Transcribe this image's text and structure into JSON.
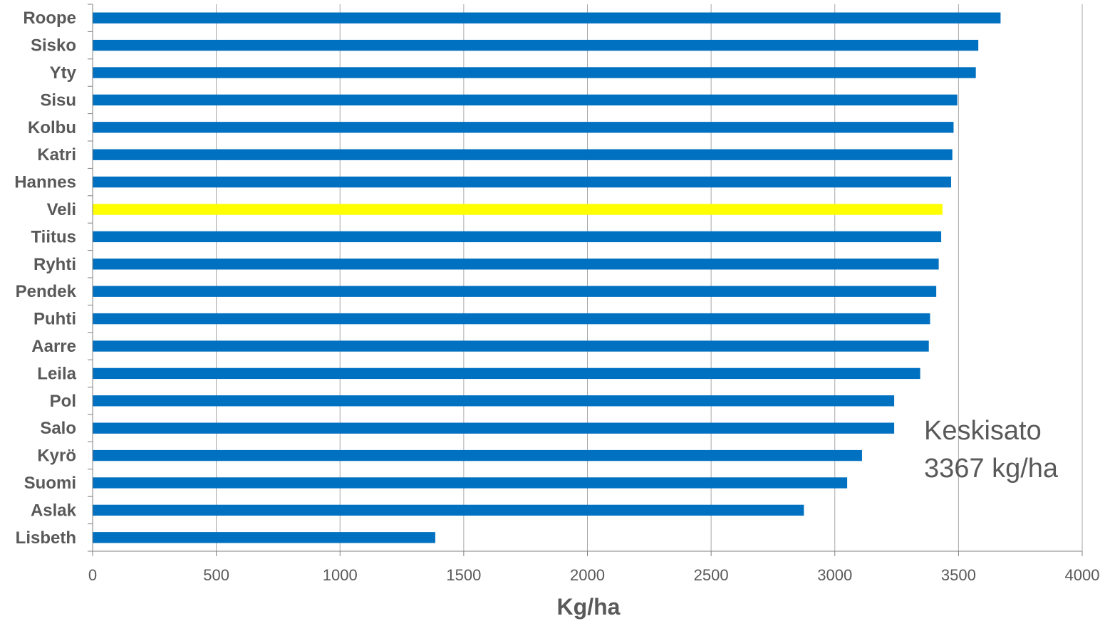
{
  "chart_data": {
    "type": "bar",
    "orientation": "horizontal",
    "categories": [
      "Roope",
      "Sisko",
      "Yty",
      "Sisu",
      "Kolbu",
      "Katri",
      "Hannes",
      "Veli",
      "Tiitus",
      "Ryhti",
      "Pendek",
      "Puhti",
      "Aarre",
      "Leila",
      "Pol",
      "Salo",
      "Kyrö",
      "Suomi",
      "Aslak",
      "Lisbeth"
    ],
    "values": [
      3670,
      3580,
      3570,
      3495,
      3480,
      3475,
      3470,
      3435,
      3430,
      3420,
      3410,
      3385,
      3380,
      3345,
      3240,
      3240,
      3110,
      3050,
      2875,
      1385
    ],
    "highlight_category": "Veli",
    "xlim": [
      0,
      4000
    ],
    "xticks": [
      0,
      500,
      1000,
      1500,
      2000,
      2500,
      3000,
      3500,
      4000
    ],
    "xlabel": "Kg/ha",
    "grid": "vertical",
    "annotation": [
      "Keskisato",
      "3367 kg/ha"
    ],
    "colors": {
      "bar": "#0070C0",
      "highlight": "#FFFF00",
      "grid": "#A6A6A6",
      "axis": "#808080",
      "text": "#595959"
    }
  }
}
